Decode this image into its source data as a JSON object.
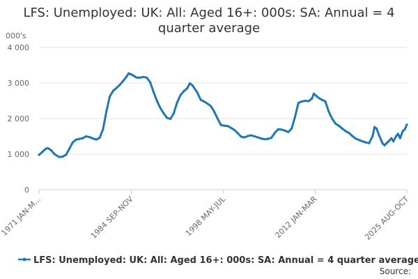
{
  "chart_data": {
    "type": "line",
    "title_lines": [
      "LFS: Unemployed: UK: All: Aged 16+: 000s: SA: Annual = 4",
      "quarter average"
    ],
    "y_unit": "000's",
    "ylim": [
      0,
      4000
    ],
    "y_ticks": [
      {
        "value": 0,
        "label": "0"
      },
      {
        "value": 1000,
        "label": "1 000"
      },
      {
        "value": 2000,
        "label": "2 000"
      },
      {
        "value": 3000,
        "label": "3 000"
      },
      {
        "value": 4000,
        "label": "4 000"
      }
    ],
    "x_range": [
      1971.0,
      2025.6
    ],
    "x_ticks": [
      {
        "value": 1971.0,
        "label": "1971 JAN-M..."
      },
      {
        "value": 1984.7,
        "label": "1984 SEP-NOV"
      },
      {
        "value": 1998.4,
        "label": "1998 MAY-JUL"
      },
      {
        "value": 2012.0,
        "label": "2012 JAN-MAR"
      },
      {
        "value": 2025.6,
        "label": "2025 AUG-OCT"
      }
    ],
    "grid": "horizontal",
    "legend_position": "bottom",
    "series": [
      {
        "name": "LFS: Unemployed: UK: All: Aged 16+: 000s: SA: Annual = 4 quarter average",
        "color": "#1f78b4",
        "points": [
          [
            1971.0,
            980
          ],
          [
            1971.5,
            1060
          ],
          [
            1972.0,
            1150
          ],
          [
            1972.3,
            1170
          ],
          [
            1972.8,
            1110
          ],
          [
            1973.3,
            1000
          ],
          [
            1974.0,
            920
          ],
          [
            1974.5,
            930
          ],
          [
            1975.0,
            980
          ],
          [
            1975.5,
            1150
          ],
          [
            1976.0,
            1330
          ],
          [
            1976.5,
            1410
          ],
          [
            1977.0,
            1430
          ],
          [
            1977.5,
            1450
          ],
          [
            1978.0,
            1500
          ],
          [
            1978.5,
            1480
          ],
          [
            1979.0,
            1440
          ],
          [
            1979.5,
            1410
          ],
          [
            1980.0,
            1460
          ],
          [
            1980.5,
            1700
          ],
          [
            1981.0,
            2200
          ],
          [
            1981.5,
            2620
          ],
          [
            1982.0,
            2780
          ],
          [
            1982.5,
            2860
          ],
          [
            1983.0,
            2950
          ],
          [
            1983.5,
            3060
          ],
          [
            1984.0,
            3180
          ],
          [
            1984.3,
            3270
          ],
          [
            1984.7,
            3240
          ],
          [
            1985.0,
            3210
          ],
          [
            1985.5,
            3150
          ],
          [
            1986.0,
            3150
          ],
          [
            1986.5,
            3170
          ],
          [
            1987.0,
            3150
          ],
          [
            1987.5,
            3020
          ],
          [
            1988.0,
            2750
          ],
          [
            1988.5,
            2500
          ],
          [
            1989.0,
            2300
          ],
          [
            1989.5,
            2150
          ],
          [
            1990.0,
            2020
          ],
          [
            1990.5,
            1990
          ],
          [
            1991.0,
            2150
          ],
          [
            1991.5,
            2450
          ],
          [
            1992.0,
            2660
          ],
          [
            1992.5,
            2770
          ],
          [
            1993.0,
            2850
          ],
          [
            1993.4,
            2990
          ],
          [
            1993.8,
            2930
          ],
          [
            1994.0,
            2870
          ],
          [
            1994.5,
            2730
          ],
          [
            1995.0,
            2530
          ],
          [
            1995.5,
            2480
          ],
          [
            1996.0,
            2420
          ],
          [
            1996.5,
            2350
          ],
          [
            1997.0,
            2200
          ],
          [
            1997.5,
            2000
          ],
          [
            1998.0,
            1820
          ],
          [
            1998.5,
            1800
          ],
          [
            1999.0,
            1790
          ],
          [
            1999.5,
            1740
          ],
          [
            2000.0,
            1680
          ],
          [
            2000.5,
            1590
          ],
          [
            2001.0,
            1490
          ],
          [
            2001.5,
            1470
          ],
          [
            2002.0,
            1510
          ],
          [
            2002.5,
            1530
          ],
          [
            2003.0,
            1500
          ],
          [
            2003.5,
            1470
          ],
          [
            2004.0,
            1440
          ],
          [
            2004.5,
            1420
          ],
          [
            2005.0,
            1430
          ],
          [
            2005.5,
            1460
          ],
          [
            2006.0,
            1600
          ],
          [
            2006.5,
            1700
          ],
          [
            2007.0,
            1690
          ],
          [
            2007.5,
            1660
          ],
          [
            2008.0,
            1620
          ],
          [
            2008.5,
            1720
          ],
          [
            2009.0,
            2050
          ],
          [
            2009.5,
            2440
          ],
          [
            2010.0,
            2480
          ],
          [
            2010.5,
            2500
          ],
          [
            2011.0,
            2490
          ],
          [
            2011.5,
            2560
          ],
          [
            2011.8,
            2700
          ],
          [
            2012.2,
            2630
          ],
          [
            2012.6,
            2570
          ],
          [
            2013.0,
            2530
          ],
          [
            2013.5,
            2480
          ],
          [
            2014.0,
            2200
          ],
          [
            2014.5,
            2000
          ],
          [
            2015.0,
            1860
          ],
          [
            2015.5,
            1800
          ],
          [
            2016.0,
            1720
          ],
          [
            2016.5,
            1650
          ],
          [
            2017.0,
            1600
          ],
          [
            2017.5,
            1510
          ],
          [
            2018.0,
            1440
          ],
          [
            2018.5,
            1400
          ],
          [
            2019.0,
            1360
          ],
          [
            2019.5,
            1330
          ],
          [
            2020.0,
            1310
          ],
          [
            2020.5,
            1500
          ],
          [
            2020.8,
            1760
          ],
          [
            2021.1,
            1720
          ],
          [
            2021.5,
            1520
          ],
          [
            2022.0,
            1300
          ],
          [
            2022.3,
            1250
          ],
          [
            2022.7,
            1330
          ],
          [
            2023.0,
            1380
          ],
          [
            2023.3,
            1450
          ],
          [
            2023.6,
            1360
          ],
          [
            2024.0,
            1500
          ],
          [
            2024.3,
            1570
          ],
          [
            2024.6,
            1450
          ],
          [
            2025.0,
            1650
          ],
          [
            2025.3,
            1700
          ],
          [
            2025.6,
            1830
          ]
        ]
      }
    ],
    "source_label": "Source:"
  }
}
